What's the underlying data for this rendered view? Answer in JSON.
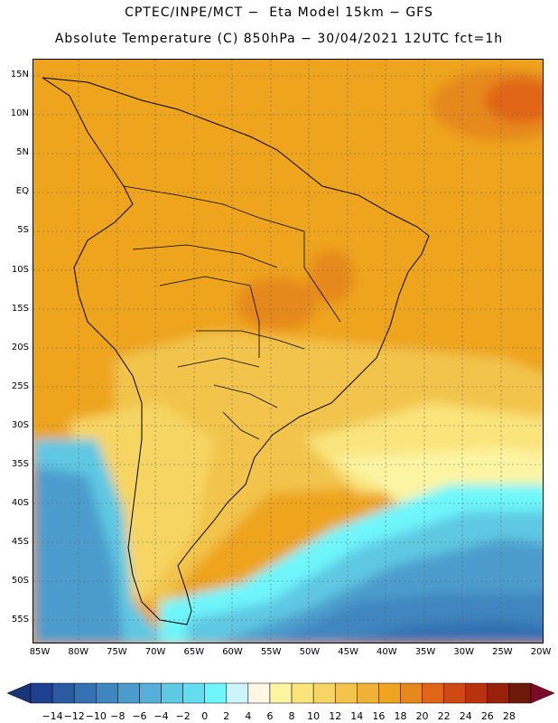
{
  "header": {
    "line1": "CPTEC/INPE/MCT −  Eta Model 15km − GFS",
    "line2": "Absolute Temperature (C) 850hPa − 30/04/2021 12UTC fct=1h"
  },
  "map": {
    "lat_labels": [
      "15N",
      "10N",
      "5N",
      "EQ",
      "5S",
      "10S",
      "15S",
      "20S",
      "25S",
      "30S",
      "35S",
      "40S",
      "45S",
      "50S",
      "55S"
    ],
    "lon_labels": [
      "85W",
      "80W",
      "75W",
      "70W",
      "65W",
      "60W",
      "55W",
      "50W",
      "45W",
      "40W",
      "35W",
      "30W",
      "25W",
      "20W"
    ]
  },
  "colorbar": {
    "ticks": [
      "−14",
      "−12",
      "−10",
      "−8",
      "−6",
      "−4",
      "−2",
      "0",
      "2",
      "4",
      "6",
      "8",
      "10",
      "12",
      "14",
      "16",
      "18",
      "20",
      "22",
      "24",
      "26",
      "28"
    ],
    "colors": [
      "#1f3f8f",
      "#2a5aa2",
      "#3371b3",
      "#3f86c0",
      "#4b9ccc",
      "#56afd8",
      "#5fc8e3",
      "#62def0",
      "#6ef6fb",
      "#cdf4fb",
      "#fdf7e3",
      "#fdf4a2",
      "#fae47c",
      "#f7d564",
      "#f2c44b",
      "#f0b236",
      "#eea41e",
      "#e6891d",
      "#e06515",
      "#cf4a12",
      "#b8320d",
      "#97210a",
      "#6e1a0a"
    ],
    "low_arrow_color": "#1a3478",
    "high_arrow_color": "#7b0a2a"
  }
}
